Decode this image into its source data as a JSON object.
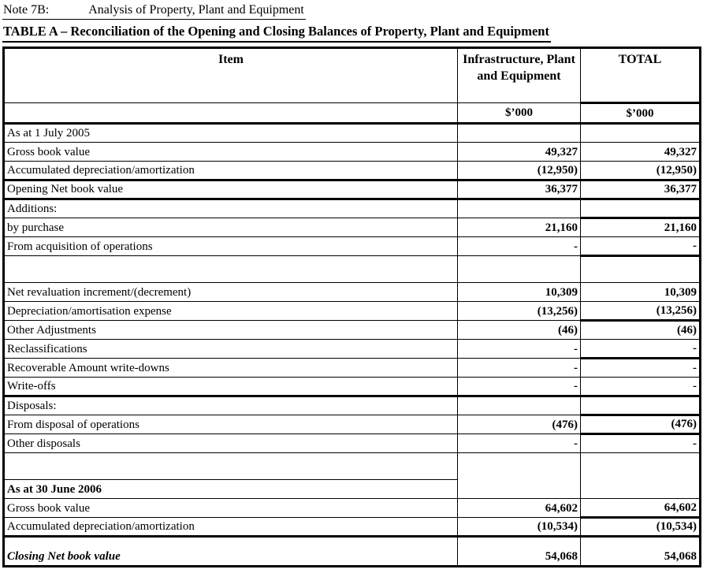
{
  "page": {
    "note_label": "Note 7B:",
    "note_title": "Analysis of Property, Plant and Equipment",
    "table_title": "TABLE A – Reconciliation of the Opening and Closing Balances of Property, Plant and Equipment"
  },
  "table": {
    "columns": [
      "Item",
      "Infrastructure, Plant and Equipment",
      "TOTAL"
    ],
    "units": [
      "",
      "$’000",
      "$’000"
    ],
    "rows": [
      {
        "item": "As at 1 July 2005",
        "ipe": "",
        "total": ""
      },
      {
        "item": "Gross book value",
        "ipe": "49,327",
        "total": "49,327"
      },
      {
        "item": "Accumulated depreciation/amortization",
        "ipe": "(12,950)",
        "total": "(12,950)",
        "rule": "thick"
      },
      {
        "item": "Opening Net book value",
        "ipe": "36,377",
        "total": "36,377",
        "rule": "thick"
      },
      {
        "item": "Additions:",
        "ipe": "",
        "total": "",
        "total_rule": "thick"
      },
      {
        "item": "by purchase",
        "ipe": "21,160",
        "total": "21,160"
      },
      {
        "item": "From acquisition of operations",
        "ipe": "-",
        "total": "-",
        "total_rule": "thick"
      },
      {
        "item": "",
        "ipe": "",
        "total": "",
        "size": "tall"
      },
      {
        "item": "Net revaluation increment/(decrement)",
        "ipe": "10,309",
        "total": "10,309"
      },
      {
        "item": "Depreciation/amortisation expense",
        "ipe": "(13,256)",
        "total": "(13,256)",
        "total_rule": "thick"
      },
      {
        "item": "Other Adjustments",
        "ipe": "(46)",
        "total": "(46)"
      },
      {
        "item": "Reclassifications",
        "ipe": "-",
        "total": "-",
        "total_rule": "thick"
      },
      {
        "item": "Recoverable Amount write-downs",
        "ipe": "-",
        "total": "-"
      },
      {
        "item": "Write-offs",
        "ipe": "-",
        "total": "-",
        "rule": "thick"
      },
      {
        "item": "Disposals:",
        "ipe": "",
        "total": "",
        "total_rule": "thick"
      },
      {
        "item": "From disposal of operations",
        "ipe": "(476)",
        "total": "(476)",
        "total_rule": "thick"
      },
      {
        "item": "Other disposals",
        "ipe": "-",
        "total": "-"
      },
      {
        "item": "",
        "ipe": "",
        "total": "",
        "rule": "item-only",
        "size": "tall"
      },
      {
        "item": "As at 30 June 2006",
        "ipe": "",
        "total": "",
        "bold": true
      },
      {
        "item": "Gross book value",
        "ipe": "64,602",
        "total": "64,602",
        "total_rule": "thick"
      },
      {
        "item": "Accumulated depreciation/amortization",
        "ipe": "(10,534)",
        "total": "(10,534)",
        "rule": "thick"
      },
      {
        "item": "Closing Net book value",
        "ipe": "54,068",
        "total": "54,068",
        "rule": "none",
        "bold": true,
        "italic": true,
        "size": "xtall"
      }
    ]
  }
}
